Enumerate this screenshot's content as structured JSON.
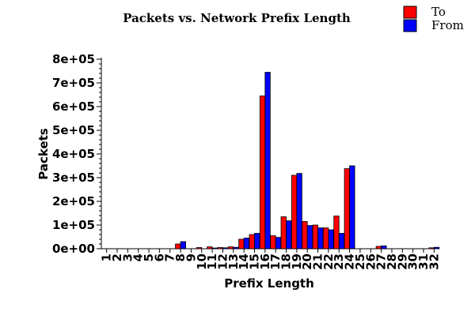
{
  "chart_data": {
    "type": "bar",
    "title": "Packets vs.  Network Prefix Length",
    "xlabel": "Prefix Length",
    "ylabel": "Packets",
    "ylim": [
      0,
      800000
    ],
    "yticks": [
      0,
      100000,
      200000,
      300000,
      400000,
      500000,
      600000,
      700000,
      800000
    ],
    "ytick_labels": [
      "0e+00",
      "1e+05",
      "2e+05",
      "3e+05",
      "4e+05",
      "5e+05",
      "6e+05",
      "7e+05",
      "8e+05"
    ],
    "categories": [
      "1",
      "2",
      "3",
      "4",
      "5",
      "6",
      "7",
      "8",
      "9",
      "10",
      "11",
      "12",
      "13",
      "14",
      "15",
      "16",
      "17",
      "18",
      "19",
      "20",
      "21",
      "22",
      "23",
      "24",
      "25",
      "26",
      "27",
      "28",
      "29",
      "30",
      "31",
      "32"
    ],
    "legend_position": "top-right",
    "grid": false,
    "series": [
      {
        "name": "To",
        "color": "#ff0000",
        "values": [
          0,
          0,
          0,
          0,
          0,
          0,
          0,
          20000,
          0,
          5000,
          8000,
          5000,
          8000,
          40000,
          60000,
          645000,
          55000,
          135000,
          310000,
          115000,
          100000,
          88000,
          138000,
          338000,
          0,
          0,
          10000,
          0,
          0,
          0,
          0,
          4000
        ]
      },
      {
        "name": "From",
        "color": "#0000ff",
        "values": [
          0,
          0,
          0,
          0,
          0,
          0,
          0,
          30000,
          0,
          0,
          3000,
          4000,
          6000,
          45000,
          65000,
          745000,
          48000,
          118000,
          318000,
          98000,
          88000,
          80000,
          65000,
          350000,
          0,
          0,
          12000,
          0,
          0,
          0,
          0,
          6000
        ]
      }
    ]
  }
}
